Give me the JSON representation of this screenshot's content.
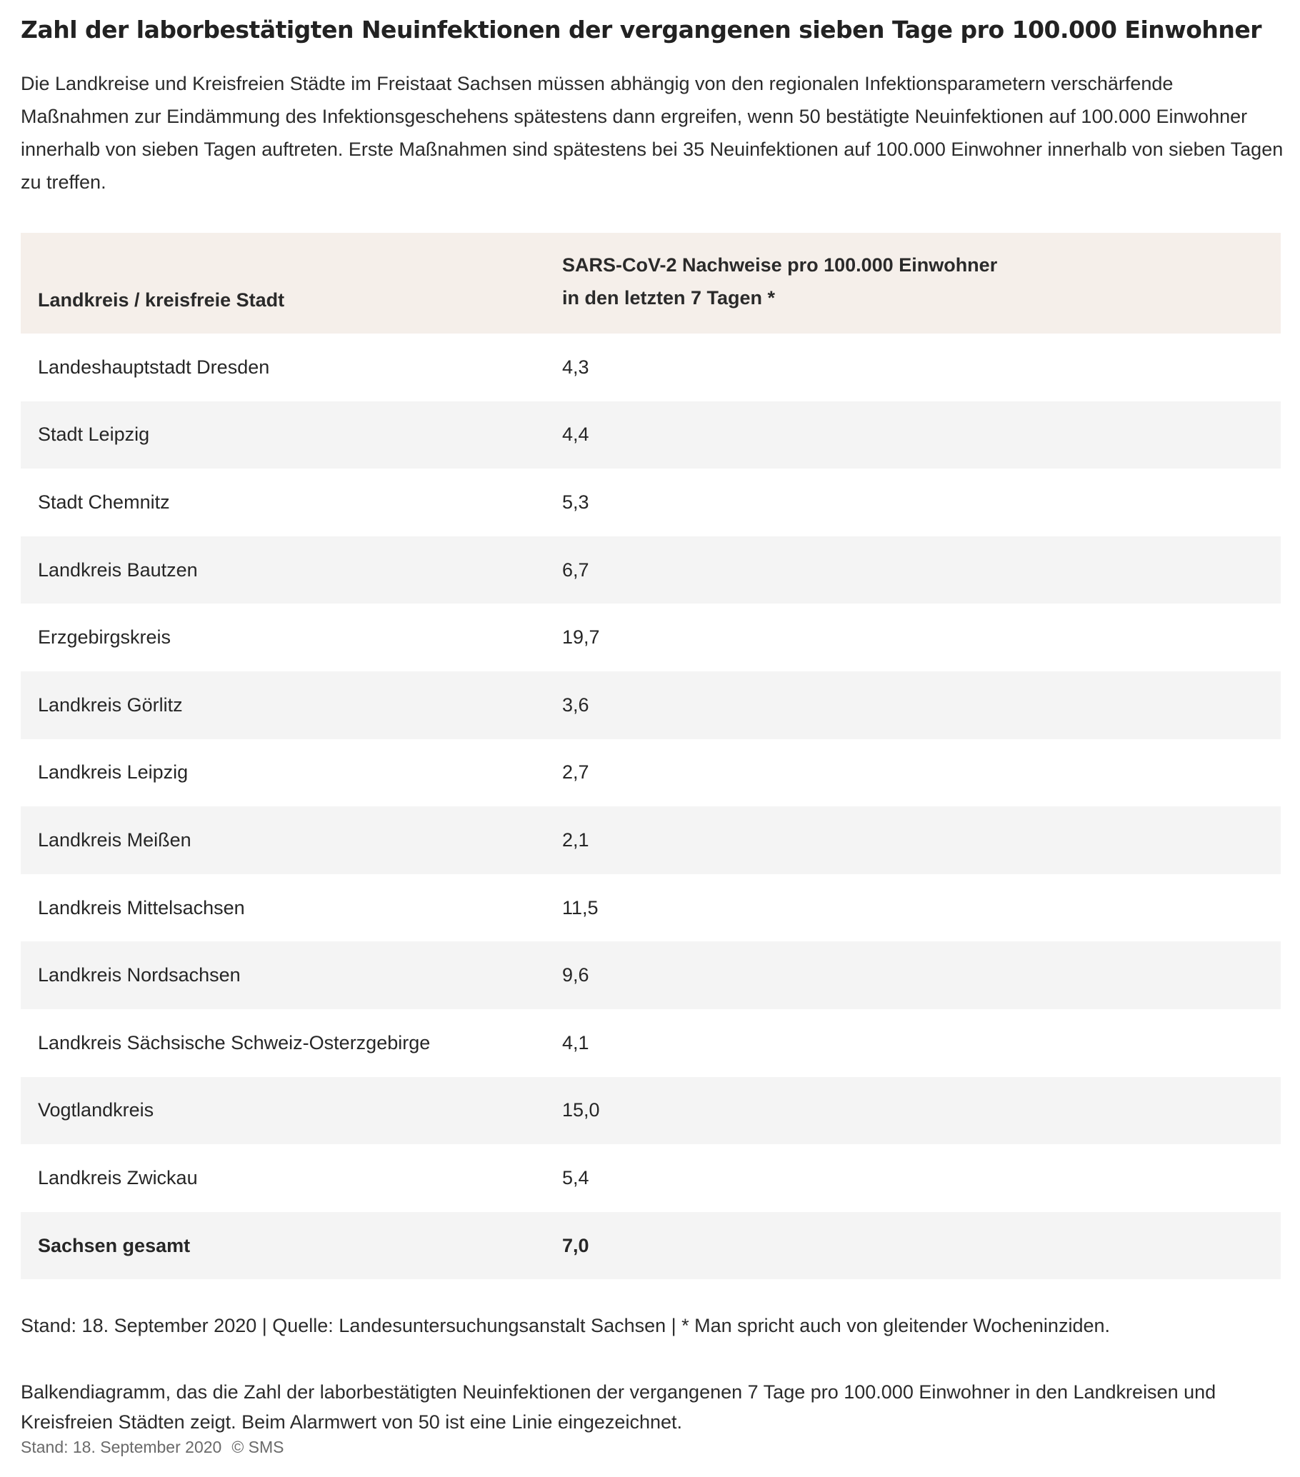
{
  "title": "Zahl der laborbestätigten Neuinfektionen der vergangenen sieben Tage pro 100.000 Einwohner",
  "intro": "Die Landkreise und Kreisfreien Städte im Freistaat Sachsen müssen abhängig von den regionalen Infektionsparametern verschärfende Maßnahmen zur Eindämmung des Infektionsgeschehens spätestens dann ergreifen, wenn 50 bestätigte Neuinfektionen auf 100.000 Einwohner innerhalb von sieben Tagen auftreten. Erste Maßnahmen sind spätestens bei 35 Neuinfektionen auf 100.000 Einwohner innerhalb von sieben Tagen zu treffen.",
  "table": {
    "headers": {
      "col1": "Landkreis / kreisfreie Stadt",
      "col2_line1": "SARS-CoV-2 Nachweise pro 100.000 Einwohner",
      "col2_line2": "in den letzten 7 Tagen *"
    },
    "rows": [
      {
        "region": "Landeshauptstadt Dresden",
        "value": "4,3"
      },
      {
        "region": "Stadt Leipzig",
        "value": "4,4"
      },
      {
        "region": "Stadt Chemnitz",
        "value": "5,3"
      },
      {
        "region": "Landkreis Bautzen",
        "value": "6,7"
      },
      {
        "region": "Erzgebirgskreis",
        "value": "19,7"
      },
      {
        "region": "Landkreis Görlitz",
        "value": "3,6"
      },
      {
        "region": "Landkreis Leipzig",
        "value": "2,7"
      },
      {
        "region": "Landkreis Meißen",
        "value": "2,1"
      },
      {
        "region": "Landkreis Mittelsachsen",
        "value": "11,5"
      },
      {
        "region": "Landkreis Nordsachsen",
        "value": "9,6"
      },
      {
        "region": "Landkreis Sächsische Schweiz-Osterzgebirge",
        "value": "4,1"
      },
      {
        "region": "Vogtlandkreis",
        "value": "15,0"
      },
      {
        "region": "Landkreis Zwickau",
        "value": "5,4"
      }
    ],
    "total": {
      "region": "Sachsen gesamt",
      "value": "7,0"
    }
  },
  "footnote": "Stand: 18. September 2020 | Quelle: Landesuntersuchungsanstalt Sachsen | * Man spricht auch von gleitender Wocheninziden.",
  "caption": "Balkendiagramm, das die Zahl der laborbestätigten Neuinfektionen der vergangenen 7 Tage pro 100.000 Einwohner in den Landkreisen und Kreisfreien Städten zeigt. Beim Alarmwert von 50 ist eine Linie eingezeichnet.",
  "credit": {
    "date": "Stand: 18. September 2020",
    "copyright": "© SMS"
  }
}
